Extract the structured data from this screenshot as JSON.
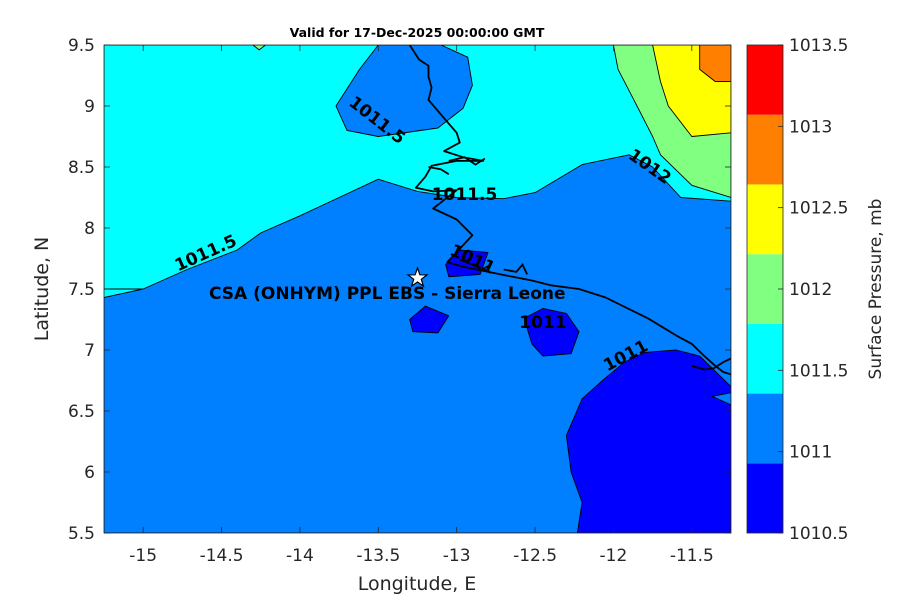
{
  "chart_data": {
    "type": "contour",
    "title": "Valid for 17-Dec-2025 00:00:00 GMT",
    "xlabel": "Longitude, E",
    "ylabel": "Latitude, N",
    "xlim": [
      -15.25,
      -11.25
    ],
    "ylim": [
      5.5,
      9.5
    ],
    "xticks": [
      -15,
      -14.5,
      -14,
      -13.5,
      -13,
      -12.5,
      -12,
      -11.5
    ],
    "yticks": [
      5.5,
      6,
      6.5,
      7,
      7.5,
      8,
      8.5,
      9,
      9.5
    ],
    "xtick_labels": [
      "-15",
      "-14.5",
      "-14",
      "-13.5",
      "-13",
      "-12.5",
      "-12",
      "-11.5"
    ],
    "ytick_labels": [
      "5.5",
      "6",
      "6.5",
      "7",
      "7.5",
      "8",
      "8.5",
      "9",
      "9.5"
    ],
    "colorbar": {
      "label": "Surface Pressure, mb",
      "levels": [
        1010.5,
        1011,
        1011.5,
        1012,
        1012.5,
        1013,
        1013.5
      ],
      "level_labels": [
        "1010.5",
        "1011",
        "1011.5",
        "1012",
        "1012.5",
        "1013",
        "1013.5"
      ],
      "colors": [
        "#0000ff",
        "#0080ff",
        "#00ffff",
        "#80ff80",
        "#ffff00",
        "#ff8000",
        "#ff0000"
      ]
    },
    "regions": [
      {
        "level": 1011.5,
        "color": "#00ffff",
        "points": [
          [
            -15.25,
            9.5
          ],
          [
            -11.25,
            9.5
          ],
          [
            -11.25,
            7.5
          ],
          [
            -15.25,
            7.5
          ]
        ]
      },
      {
        "level": 1011,
        "color": "#0080ff",
        "points": [
          [
            -15.25,
            7.43
          ],
          [
            -15.0,
            7.5
          ],
          [
            -14.72,
            7.66
          ],
          [
            -14.4,
            7.82
          ],
          [
            -14.25,
            7.96
          ],
          [
            -14.0,
            8.1
          ],
          [
            -13.75,
            8.25
          ],
          [
            -13.5,
            8.4
          ],
          [
            -13.25,
            8.3
          ],
          [
            -13.0,
            8.25
          ],
          [
            -12.7,
            8.24
          ],
          [
            -12.5,
            8.29
          ],
          [
            -12.2,
            8.52
          ],
          [
            -11.9,
            8.6
          ],
          [
            -11.75,
            8.5
          ],
          [
            -11.57,
            8.25
          ],
          [
            -11.25,
            8.22
          ],
          [
            -11.25,
            5.5
          ],
          [
            -15.25,
            5.5
          ]
        ]
      },
      {
        "level": 1011,
        "color": "#0080ff",
        "points": [
          [
            -13.77,
            9.0
          ],
          [
            -13.62,
            9.3
          ],
          [
            -13.5,
            9.5
          ],
          [
            -13.1,
            9.5
          ],
          [
            -12.93,
            9.4
          ],
          [
            -12.9,
            9.17
          ],
          [
            -12.96,
            8.98
          ],
          [
            -13.12,
            8.82
          ],
          [
            -13.5,
            8.75
          ],
          [
            -13.7,
            8.8
          ]
        ]
      },
      {
        "level": 1012,
        "color": "#80ff80",
        "points": [
          [
            -12.0,
            9.5
          ],
          [
            -11.25,
            9.5
          ],
          [
            -11.25,
            8.25
          ],
          [
            -11.5,
            8.35
          ],
          [
            -11.7,
            8.6
          ],
          [
            -11.75,
            8.75
          ],
          [
            -11.85,
            9.0
          ],
          [
            -11.97,
            9.3
          ]
        ]
      },
      {
        "level": 1012,
        "color": "#80ff80",
        "points": [
          [
            -14.3,
            9.5
          ],
          [
            -14.22,
            9.5
          ],
          [
            -14.26,
            9.46
          ]
        ]
      },
      {
        "level": 1012.5,
        "color": "#ffff00",
        "points": [
          [
            -11.75,
            9.5
          ],
          [
            -11.25,
            9.5
          ],
          [
            -11.25,
            8.78
          ],
          [
            -11.5,
            8.75
          ],
          [
            -11.65,
            9.0
          ],
          [
            -11.7,
            9.2
          ]
        ]
      },
      {
        "level": 1013,
        "color": "#ff8000",
        "points": [
          [
            -11.45,
            9.5
          ],
          [
            -11.25,
            9.5
          ],
          [
            -11.25,
            9.2
          ],
          [
            -11.35,
            9.2
          ],
          [
            -11.45,
            9.3
          ]
        ]
      },
      {
        "level": 1010.5,
        "color": "#0000ff",
        "points": [
          [
            -13.07,
            7.7
          ],
          [
            -12.98,
            7.82
          ],
          [
            -12.8,
            7.8
          ],
          [
            -12.85,
            7.62
          ],
          [
            -13.05,
            7.6
          ]
        ]
      },
      {
        "level": 1010.5,
        "color": "#0000ff",
        "points": [
          [
            -13.3,
            7.25
          ],
          [
            -13.2,
            7.36
          ],
          [
            -13.05,
            7.28
          ],
          [
            -13.12,
            7.14
          ],
          [
            -13.28,
            7.15
          ]
        ]
      },
      {
        "level": 1010.5,
        "color": "#0000ff",
        "points": [
          [
            -12.57,
            7.26
          ],
          [
            -12.45,
            7.34
          ],
          [
            -12.3,
            7.3
          ],
          [
            -12.22,
            7.15
          ],
          [
            -12.27,
            6.97
          ],
          [
            -12.45,
            6.95
          ],
          [
            -12.52,
            7.05
          ]
        ]
      },
      {
        "level": 1010.5,
        "color": "#0000ff",
        "points": [
          [
            -11.25,
            6.7
          ],
          [
            -11.45,
            6.95
          ],
          [
            -11.6,
            7.0
          ],
          [
            -11.8,
            6.98
          ],
          [
            -11.93,
            6.9
          ],
          [
            -12.07,
            6.75
          ],
          [
            -12.2,
            6.6
          ],
          [
            -12.3,
            6.3
          ],
          [
            -12.27,
            6.0
          ],
          [
            -12.2,
            5.75
          ],
          [
            -12.23,
            5.5
          ],
          [
            -11.25,
            5.5
          ]
        ]
      },
      {
        "level": 1011,
        "color": "#0080ff",
        "points": [
          [
            -11.25,
            6.65
          ],
          [
            -11.37,
            6.62
          ],
          [
            -11.25,
            6.55
          ]
        ]
      }
    ],
    "contour_labels": [
      {
        "text": "1011.5",
        "x": -13.51,
        "y": 8.88,
        "angle": 38
      },
      {
        "text": "1011.5",
        "x": -12.95,
        "y": 8.27,
        "angle": 0
      },
      {
        "text": "1011.5",
        "x": -14.6,
        "y": 7.79,
        "angle": -24
      },
      {
        "text": "1012",
        "x": -11.77,
        "y": 8.5,
        "angle": 35
      },
      {
        "text": "1011",
        "x": -12.9,
        "y": 7.74,
        "angle": 25
      },
      {
        "text": "1011",
        "x": -12.45,
        "y": 7.22,
        "angle": 0
      },
      {
        "text": "1011",
        "x": -11.92,
        "y": 6.95,
        "angle": -28
      }
    ],
    "coastline": [
      [
        -13.3,
        9.5
      ],
      [
        -13.24,
        9.38
      ],
      [
        -13.18,
        9.33
      ],
      [
        -13.18,
        9.24
      ],
      [
        -13.16,
        9.15
      ],
      [
        -13.18,
        9.05
      ],
      [
        -13.12,
        8.96
      ],
      [
        -13.06,
        8.87
      ],
      [
        -13.0,
        8.78
      ],
      [
        -12.98,
        8.7
      ],
      [
        -13.08,
        8.63
      ],
      [
        -12.96,
        8.58
      ],
      [
        -12.83,
        8.55
      ],
      [
        -13.0,
        8.55
      ],
      [
        -13.16,
        8.51
      ],
      [
        -13.2,
        8.42
      ],
      [
        -13.26,
        8.33
      ],
      [
        -13.15,
        8.3
      ],
      [
        -13.0,
        8.31
      ],
      [
        -13.07,
        8.24
      ],
      [
        -13.15,
        8.16
      ],
      [
        -13.0,
        8.07
      ],
      [
        -12.9,
        7.94
      ],
      [
        -12.98,
        7.83
      ],
      [
        -13.06,
        7.72
      ],
      [
        -12.95,
        7.68
      ],
      [
        -12.72,
        7.62
      ],
      [
        -12.52,
        7.57
      ],
      [
        -12.4,
        7.53
      ],
      [
        -12.22,
        7.5
      ],
      [
        -12.05,
        7.43
      ],
      [
        -11.78,
        7.26
      ],
      [
        -11.6,
        7.12
      ],
      [
        -11.5,
        7.05
      ],
      [
        -11.42,
        6.95
      ],
      [
        -11.36,
        6.88
      ],
      [
        -11.3,
        6.82
      ],
      [
        -11.25,
        6.8
      ]
    ],
    "coastline_detail": [
      [
        [
          -13.05,
          8.55
        ],
        [
          -12.95,
          8.58
        ],
        [
          -12.88,
          8.52
        ],
        [
          -12.82,
          8.57
        ]
      ],
      [
        [
          -13.18,
          8.5
        ],
        [
          -13.1,
          8.48
        ],
        [
          -13.05,
          8.44
        ]
      ],
      [
        [
          -12.98,
          7.74
        ],
        [
          -12.9,
          7.7
        ],
        [
          -12.84,
          7.66
        ],
        [
          -12.78,
          7.7
        ]
      ],
      [
        [
          -12.7,
          7.66
        ],
        [
          -12.62,
          7.64
        ],
        [
          -12.58,
          7.7
        ],
        [
          -12.55,
          7.62
        ]
      ],
      [
        [
          -11.5,
          6.87
        ],
        [
          -11.42,
          6.84
        ],
        [
          -11.36,
          6.85
        ],
        [
          -11.3,
          6.9
        ],
        [
          -11.25,
          6.93
        ]
      ]
    ],
    "marker": {
      "symbol": "star",
      "x": -13.25,
      "y": 7.59,
      "label": "CSA (ONHYM) PPL EBS  - Sierra Leone"
    }
  }
}
